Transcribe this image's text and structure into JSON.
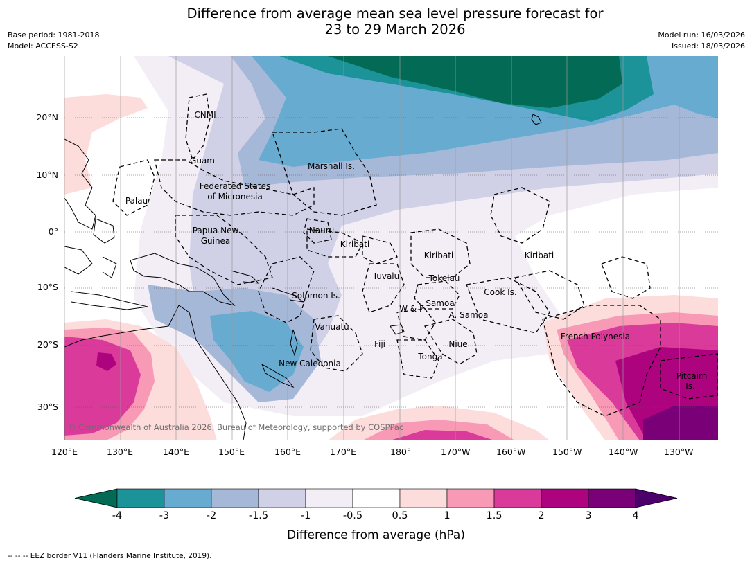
{
  "title": {
    "line1": "Difference from average mean sea level pressure forecast for",
    "line2": "23 to 29 March 2026"
  },
  "meta": {
    "base_period": "Base period: 1981-2018",
    "model": "Model: ACCESS-S2",
    "model_run": "Model run: 16/03/2026",
    "issued": "Issued: 18/03/2026"
  },
  "axes": {
    "lat_labels": [
      "20°N",
      "10°N",
      "0°",
      "10°S",
      "20°S",
      "30°S"
    ],
    "lon_labels": [
      "120°E",
      "130°E",
      "140°E",
      "150°E",
      "160°E",
      "170°E",
      "180°",
      "170°W",
      "160°W",
      "150°W",
      "140°W",
      "130°W"
    ]
  },
  "region_labels": [
    {
      "id": "cnmi",
      "text": "CNMI"
    },
    {
      "id": "guam",
      "text": "Guam"
    },
    {
      "id": "palau",
      "text": "Palau"
    },
    {
      "id": "fsm1",
      "text": "Federated States"
    },
    {
      "id": "fsm2",
      "text": "of Micronesia"
    },
    {
      "id": "marshall",
      "text": "Marshall Is."
    },
    {
      "id": "png1",
      "text": "Papua New"
    },
    {
      "id": "png2",
      "text": "Guinea"
    },
    {
      "id": "nauru",
      "text": "Nauru"
    },
    {
      "id": "kiribati-w",
      "text": "Kiribati"
    },
    {
      "id": "kiribati-c",
      "text": "Kiribati"
    },
    {
      "id": "kiribati-e",
      "text": "Kiribati"
    },
    {
      "id": "tuvalu",
      "text": "Tuvalu"
    },
    {
      "id": "tokelau",
      "text": "Tokelau"
    },
    {
      "id": "cook",
      "text": "Cook Is."
    },
    {
      "id": "solomon",
      "text": "Solomon Is."
    },
    {
      "id": "samoa",
      "text": "Samoa"
    },
    {
      "id": "wf",
      "text": "W & F"
    },
    {
      "id": "asamoa",
      "text": "A. Samoa"
    },
    {
      "id": "vanuatu",
      "text": "Vanuatu"
    },
    {
      "id": "fiji",
      "text": "Fiji"
    },
    {
      "id": "niue",
      "text": "Niue"
    },
    {
      "id": "tonga",
      "text": "Tonga"
    },
    {
      "id": "newcal",
      "text": "New Caledonia"
    },
    {
      "id": "frpoly",
      "text": "French Polynesia"
    },
    {
      "id": "pitcairn1",
      "text": "Pitcairn"
    },
    {
      "id": "pitcairn2",
      "text": "Is."
    }
  ],
  "copyright": "© Commonwealth of Australia 2026, Bureau of Meteorology, supported by COSPPac",
  "colorbar": {
    "tick_labels": [
      "-4",
      "-3",
      "-2",
      "-1.5",
      "-1",
      "-0.5",
      "0.5",
      "1",
      "1.5",
      "2",
      "3",
      "4"
    ],
    "colors": [
      "#036b55",
      "#1c9299",
      "#67abd1",
      "#a6b8d8",
      "#d0d0e6",
      "#f3eef5",
      "#ffffff",
      "#fddcdc",
      "#f89ab6",
      "#da3a9a",
      "#ae037e",
      "#7a0077",
      "#4b006b"
    ],
    "label": "Difference from average (hPa)"
  },
  "footer": "--  --  -- EEZ border V11 (Flanders Marine Institute, 2019)."
}
